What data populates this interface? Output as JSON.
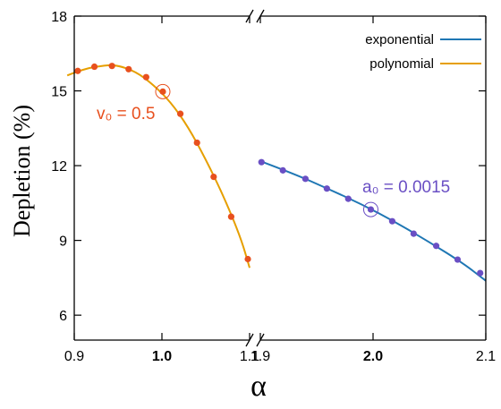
{
  "chart_data": {
    "type": "line",
    "ylabel": "Depletion (%)",
    "xlabel": "α",
    "ylim": [
      5,
      18
    ],
    "yticks": [
      "6",
      "9",
      "12",
      "15",
      "18"
    ],
    "grid": false,
    "broken_x_axis": true,
    "legend_position": "top-right",
    "panels": [
      {
        "xlim": [
          0.9,
          1.1
        ],
        "xticks": [
          {
            "value": 0.9,
            "label": "0.9",
            "bold": false
          },
          {
            "value": 1.0,
            "label": "1.0",
            "bold": true
          },
          {
            "value": 1.1,
            "label": "1.1",
            "bold": false
          }
        ]
      },
      {
        "xlim": [
          1.9,
          2.1
        ],
        "xticks": [
          {
            "value": 1.9,
            "label": "1.9",
            "bold": false
          },
          {
            "value": 2.0,
            "label": "2.0",
            "bold": true
          },
          {
            "value": 2.1,
            "label": "2.1",
            "bold": false
          }
        ]
      }
    ],
    "series": [
      {
        "name": "polynomial",
        "panel": 0,
        "color": "#e69f00",
        "marker_color": "#e8501e",
        "x": [
          0.904,
          0.923,
          0.943,
          0.962,
          0.982,
          1.001,
          1.021,
          1.04,
          1.059,
          1.079,
          1.098
        ],
        "y": [
          15.8,
          15.97,
          16.0,
          15.87,
          15.55,
          14.97,
          14.08,
          12.92,
          11.55,
          9.95,
          8.25
        ],
        "curve": {
          "x": [
            0.892,
            0.91,
            0.93,
            0.947,
            0.97,
            0.99,
            1.01,
            1.03,
            1.05,
            1.07,
            1.09,
            1.1
          ],
          "y": [
            15.62,
            15.87,
            16.0,
            16.05,
            15.78,
            15.25,
            14.55,
            13.55,
            12.25,
            10.8,
            9.1,
            7.9
          ]
        },
        "highlight": {
          "x": 1.001,
          "y": 14.97,
          "label": "v₀ = 0.5"
        }
      },
      {
        "name": "exponential",
        "panel": 1,
        "color": "#1f77b4",
        "marker_color": "#6a4fc4",
        "x": [
          1.901,
          1.92,
          1.94,
          1.959,
          1.978,
          1.998,
          2.017,
          2.036,
          2.056,
          2.075,
          2.095
        ],
        "y": [
          12.14,
          11.81,
          11.47,
          11.08,
          10.67,
          10.24,
          9.77,
          9.27,
          8.78,
          8.23,
          7.69
        ],
        "curve": {
          "x": [
            1.9,
            1.93,
            1.96,
            1.99,
            2.02,
            2.05,
            2.08,
            2.1
          ],
          "y": [
            12.18,
            11.67,
            11.07,
            10.45,
            9.73,
            8.93,
            8.08,
            7.38
          ]
        },
        "highlight": {
          "x": 1.998,
          "y": 10.24,
          "label": "a₀ = 0.0015"
        }
      }
    ]
  }
}
